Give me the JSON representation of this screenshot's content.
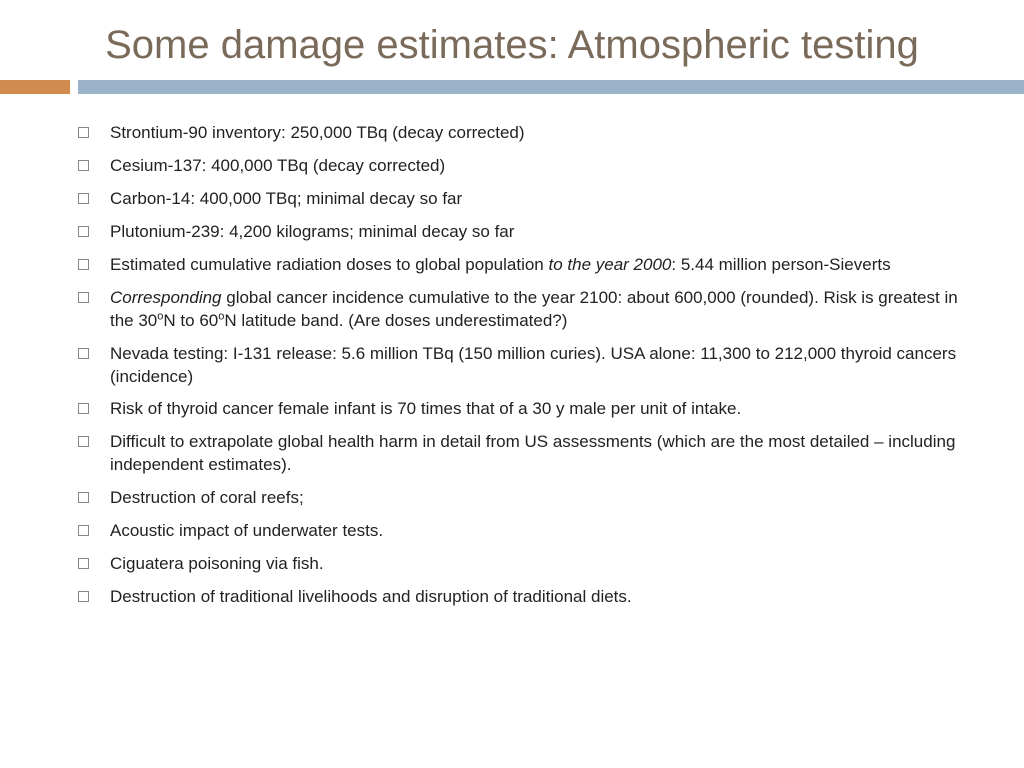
{
  "title": "Some damage estimates: Atmospheric testing",
  "bullets": {
    "b0": "Strontium-90 inventory: 250,000 TBq (decay corrected)",
    "b1": "Cesium-137: 400,000 TBq (decay corrected)",
    "b2": "Carbon-14: 400,000 TBq; minimal decay so far",
    "b3": "Plutonium-239: 4,200 kilograms; minimal decay so far",
    "b4_a": "Estimated cumulative radiation doses to global population ",
    "b4_i": "to the year 2000",
    "b4_b": ": 5.44 million person-Sieverts",
    "b5_i": "Corresponding",
    "b5_a": " global cancer incidence cumulative to the year 2100: about 600,000 (rounded). Risk is greatest in the 30",
    "b5_sup1": "o",
    "b5_mid": "N to 60",
    "b5_sup2": "o",
    "b5_b": "N latitude  band. (Are doses underestimated?)",
    "b6": "Nevada testing: I-131 release: 5.6 million TBq (150 million curies). USA alone: 11,300 to 212,000 thyroid cancers (incidence)",
    "b7": "Risk of thyroid cancer female infant is 70 times that of a 30 y male per unit of intake.",
    "b8": "Difficult to  extrapolate global health harm in detail from US assessments (which are the most detailed – including independent estimates).",
    "b9": "Destruction of coral reefs;",
    "b10": "Acoustic impact of underwater tests.",
    "b11": "Ciguatera poisoning via fish.",
    "b12": "Destruction of traditional livelihoods and disruption of traditional diets."
  },
  "colors": {
    "title": "#7a6a5a",
    "accent_orange": "#d28b4e",
    "accent_blue": "#9bb3c9",
    "text": "#222222",
    "bullet_border": "#888888",
    "background": "#ffffff"
  },
  "typography": {
    "title_fontsize": 40,
    "body_fontsize": 17,
    "font_family": "Century Gothic"
  }
}
